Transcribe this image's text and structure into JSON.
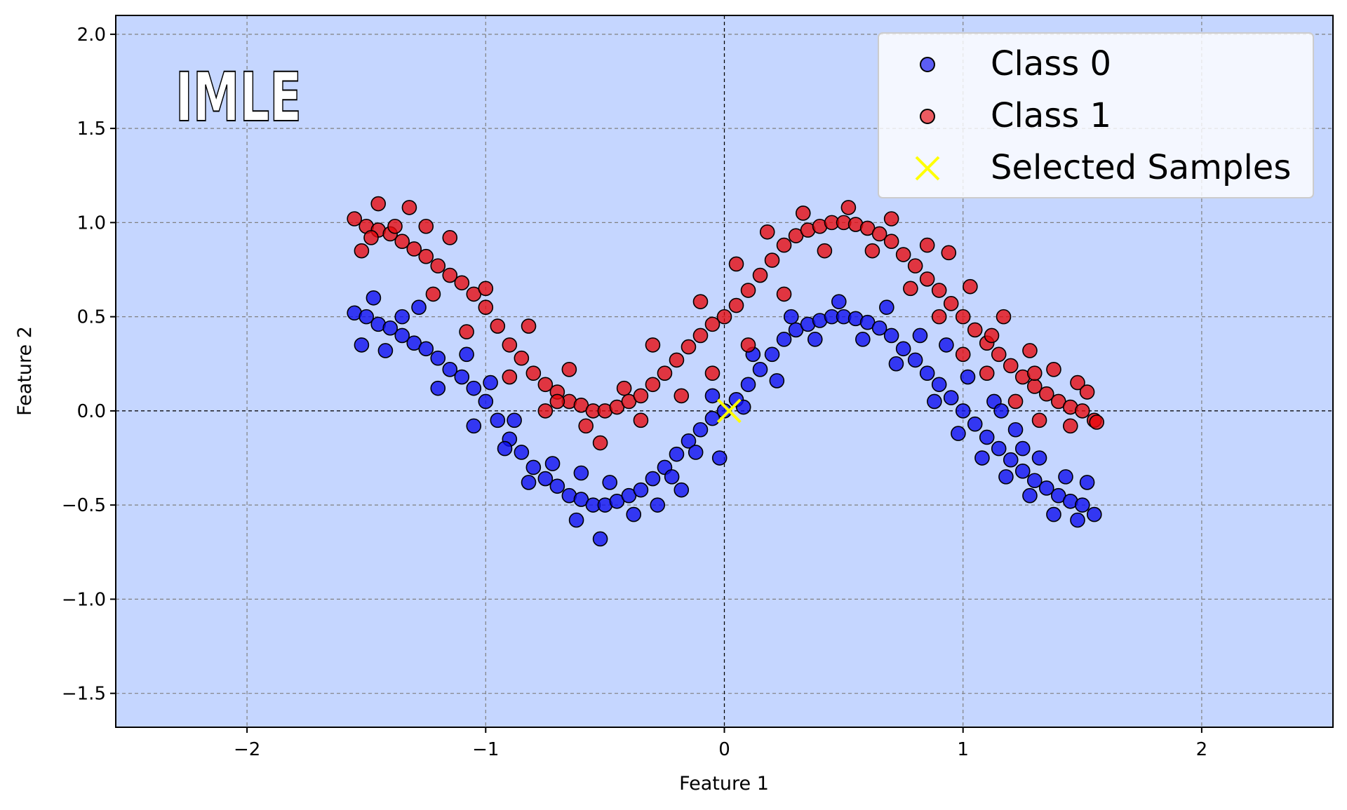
{
  "chart_data": {
    "type": "scatter",
    "title": "",
    "watermark": "IMLE",
    "xlabel": "Feature 1",
    "ylabel": "Feature 2",
    "xlim": [
      -2.55,
      2.55
    ],
    "ylim": [
      -1.68,
      2.1
    ],
    "xticks": [
      -2,
      -1,
      0,
      1,
      2
    ],
    "xtick_labels": [
      "−2",
      "−1",
      "0",
      "1",
      "2"
    ],
    "yticks": [
      -1.5,
      -1.0,
      -0.5,
      0.0,
      0.5,
      1.0,
      1.5,
      2.0
    ],
    "ytick_labels": [
      "−1.5",
      "−1.0",
      "−0.5",
      "0.0",
      "0.5",
      "1.0",
      "1.5",
      "2.0"
    ],
    "grid": true,
    "background_color": "#c5d6ff",
    "legend_position": "top-right",
    "series": [
      {
        "name": "Class 0",
        "color": "#0a0aee",
        "marker": "circle",
        "points": [
          [
            -1.55,
            0.52
          ],
          [
            -1.5,
            0.5
          ],
          [
            -1.45,
            0.46
          ],
          [
            -1.4,
            0.44
          ],
          [
            -1.35,
            0.4
          ],
          [
            -1.3,
            0.36
          ],
          [
            -1.25,
            0.33
          ],
          [
            -1.2,
            0.28
          ],
          [
            -1.15,
            0.22
          ],
          [
            -1.1,
            0.18
          ],
          [
            -1.05,
            0.12
          ],
          [
            -1.0,
            0.05
          ],
          [
            -0.95,
            -0.05
          ],
          [
            -0.9,
            -0.15
          ],
          [
            -0.85,
            -0.22
          ],
          [
            -0.8,
            -0.3
          ],
          [
            -0.75,
            -0.36
          ],
          [
            -0.7,
            -0.4
          ],
          [
            -0.65,
            -0.45
          ],
          [
            -0.6,
            -0.47
          ],
          [
            -0.55,
            -0.5
          ],
          [
            -0.5,
            -0.5
          ],
          [
            -0.45,
            -0.48
          ],
          [
            -0.4,
            -0.45
          ],
          [
            -0.35,
            -0.42
          ],
          [
            -0.3,
            -0.36
          ],
          [
            -0.25,
            -0.3
          ],
          [
            -0.2,
            -0.23
          ],
          [
            -0.15,
            -0.16
          ],
          [
            -0.1,
            -0.1
          ],
          [
            -0.05,
            -0.04
          ],
          [
            0.0,
            0.0
          ],
          [
            0.05,
            0.06
          ],
          [
            0.1,
            0.14
          ],
          [
            0.15,
            0.22
          ],
          [
            0.2,
            0.3
          ],
          [
            0.25,
            0.38
          ],
          [
            0.3,
            0.43
          ],
          [
            0.35,
            0.46
          ],
          [
            0.4,
            0.48
          ],
          [
            0.45,
            0.5
          ],
          [
            0.5,
            0.5
          ],
          [
            0.55,
            0.49
          ],
          [
            0.6,
            0.47
          ],
          [
            0.65,
            0.44
          ],
          [
            0.7,
            0.4
          ],
          [
            0.75,
            0.33
          ],
          [
            0.8,
            0.27
          ],
          [
            0.85,
            0.2
          ],
          [
            0.9,
            0.14
          ],
          [
            0.95,
            0.07
          ],
          [
            1.0,
            0.0
          ],
          [
            1.05,
            -0.07
          ],
          [
            1.1,
            -0.14
          ],
          [
            1.15,
            -0.2
          ],
          [
            1.2,
            -0.26
          ],
          [
            1.25,
            -0.32
          ],
          [
            1.3,
            -0.37
          ],
          [
            1.35,
            -0.41
          ],
          [
            1.4,
            -0.45
          ],
          [
            1.45,
            -0.48
          ],
          [
            1.5,
            -0.5
          ],
          [
            1.55,
            -0.55
          ],
          [
            -1.52,
            0.35
          ],
          [
            -1.47,
            0.6
          ],
          [
            -1.28,
            0.55
          ],
          [
            -1.2,
            0.12
          ],
          [
            -1.08,
            0.3
          ],
          [
            -1.05,
            -0.08
          ],
          [
            -0.98,
            0.15
          ],
          [
            -0.92,
            -0.2
          ],
          [
            -0.88,
            -0.05
          ],
          [
            -0.82,
            -0.38
          ],
          [
            -0.72,
            -0.28
          ],
          [
            -0.62,
            -0.58
          ],
          [
            -0.52,
            -0.68
          ],
          [
            -0.48,
            -0.38
          ],
          [
            -0.38,
            -0.55
          ],
          [
            -0.28,
            -0.5
          ],
          [
            -0.22,
            -0.35
          ],
          [
            -0.12,
            -0.22
          ],
          [
            -0.02,
            -0.25
          ],
          [
            -0.05,
            0.08
          ],
          [
            0.08,
            0.02
          ],
          [
            0.12,
            0.3
          ],
          [
            0.22,
            0.16
          ],
          [
            0.28,
            0.5
          ],
          [
            0.38,
            0.38
          ],
          [
            0.48,
            0.58
          ],
          [
            0.58,
            0.38
          ],
          [
            0.68,
            0.55
          ],
          [
            0.72,
            0.25
          ],
          [
            0.82,
            0.4
          ],
          [
            0.88,
            0.05
          ],
          [
            0.93,
            0.35
          ],
          [
            0.98,
            -0.12
          ],
          [
            1.02,
            0.18
          ],
          [
            1.08,
            -0.25
          ],
          [
            1.13,
            0.05
          ],
          [
            1.18,
            -0.35
          ],
          [
            1.22,
            -0.1
          ],
          [
            1.28,
            -0.45
          ],
          [
            1.32,
            -0.25
          ],
          [
            1.38,
            -0.55
          ],
          [
            1.43,
            -0.35
          ],
          [
            1.48,
            -0.58
          ],
          [
            1.52,
            -0.38
          ],
          [
            1.16,
            0.0
          ],
          [
            1.25,
            -0.2
          ],
          [
            -0.18,
            -0.42
          ],
          [
            -0.6,
            -0.33
          ],
          [
            -1.35,
            0.5
          ],
          [
            -1.42,
            0.32
          ]
        ]
      },
      {
        "name": "Class 1",
        "color": "#e8080c",
        "marker": "circle",
        "points": [
          [
            -1.55,
            1.02
          ],
          [
            -1.5,
            0.98
          ],
          [
            -1.45,
            0.96
          ],
          [
            -1.4,
            0.94
          ],
          [
            -1.35,
            0.9
          ],
          [
            -1.3,
            0.86
          ],
          [
            -1.25,
            0.82
          ],
          [
            -1.2,
            0.77
          ],
          [
            -1.15,
            0.72
          ],
          [
            -1.1,
            0.68
          ],
          [
            -1.05,
            0.62
          ],
          [
            -1.0,
            0.55
          ],
          [
            -0.95,
            0.45
          ],
          [
            -0.9,
            0.35
          ],
          [
            -0.85,
            0.28
          ],
          [
            -0.8,
            0.2
          ],
          [
            -0.75,
            0.14
          ],
          [
            -0.7,
            0.1
          ],
          [
            -0.65,
            0.05
          ],
          [
            -0.6,
            0.03
          ],
          [
            -0.55,
            0.0
          ],
          [
            -0.5,
            0.0
          ],
          [
            -0.45,
            0.02
          ],
          [
            -0.4,
            0.05
          ],
          [
            -0.35,
            0.08
          ],
          [
            -0.3,
            0.14
          ],
          [
            -0.25,
            0.2
          ],
          [
            -0.2,
            0.27
          ],
          [
            -0.15,
            0.34
          ],
          [
            -0.1,
            0.4
          ],
          [
            -0.05,
            0.46
          ],
          [
            0.0,
            0.5
          ],
          [
            0.05,
            0.56
          ],
          [
            0.1,
            0.64
          ],
          [
            0.15,
            0.72
          ],
          [
            0.2,
            0.8
          ],
          [
            0.25,
            0.88
          ],
          [
            0.3,
            0.93
          ],
          [
            0.35,
            0.96
          ],
          [
            0.4,
            0.98
          ],
          [
            0.45,
            1.0
          ],
          [
            0.5,
            1.0
          ],
          [
            0.55,
            0.99
          ],
          [
            0.6,
            0.97
          ],
          [
            0.65,
            0.94
          ],
          [
            0.7,
            0.9
          ],
          [
            0.75,
            0.83
          ],
          [
            0.8,
            0.77
          ],
          [
            0.85,
            0.7
          ],
          [
            0.9,
            0.64
          ],
          [
            0.95,
            0.57
          ],
          [
            1.0,
            0.5
          ],
          [
            1.05,
            0.43
          ],
          [
            1.1,
            0.36
          ],
          [
            1.15,
            0.3
          ],
          [
            1.2,
            0.24
          ],
          [
            1.25,
            0.18
          ],
          [
            1.3,
            0.13
          ],
          [
            1.35,
            0.09
          ],
          [
            1.4,
            0.05
          ],
          [
            1.45,
            0.02
          ],
          [
            1.5,
            0.0
          ],
          [
            1.55,
            -0.05
          ],
          [
            -1.52,
            0.85
          ],
          [
            -1.45,
            1.1
          ],
          [
            -1.32,
            1.08
          ],
          [
            -1.22,
            0.62
          ],
          [
            -1.15,
            0.92
          ],
          [
            -1.08,
            0.42
          ],
          [
            -1.0,
            0.65
          ],
          [
            -0.9,
            0.18
          ],
          [
            -0.82,
            0.45
          ],
          [
            -0.75,
            0.0
          ],
          [
            -0.65,
            0.22
          ],
          [
            -0.58,
            -0.08
          ],
          [
            -0.52,
            -0.17
          ],
          [
            -0.42,
            0.12
          ],
          [
            -0.3,
            0.35
          ],
          [
            -0.35,
            -0.05
          ],
          [
            -0.18,
            0.08
          ],
          [
            -0.1,
            0.58
          ],
          [
            -0.05,
            0.2
          ],
          [
            0.05,
            0.78
          ],
          [
            0.1,
            0.35
          ],
          [
            0.18,
            0.95
          ],
          [
            0.25,
            0.62
          ],
          [
            0.33,
            1.05
          ],
          [
            0.42,
            0.85
          ],
          [
            0.52,
            1.08
          ],
          [
            0.62,
            0.85
          ],
          [
            0.7,
            1.02
          ],
          [
            0.78,
            0.65
          ],
          [
            0.85,
            0.88
          ],
          [
            0.9,
            0.5
          ],
          [
            0.94,
            0.84
          ],
          [
            1.0,
            0.3
          ],
          [
            1.03,
            0.66
          ],
          [
            1.1,
            0.2
          ],
          [
            1.17,
            0.5
          ],
          [
            1.22,
            0.05
          ],
          [
            1.28,
            0.32
          ],
          [
            1.32,
            -0.05
          ],
          [
            1.38,
            0.22
          ],
          [
            1.45,
            -0.08
          ],
          [
            1.48,
            0.15
          ],
          [
            1.52,
            0.1
          ],
          [
            1.56,
            -0.06
          ],
          [
            1.12,
            0.4
          ],
          [
            1.3,
            0.2
          ],
          [
            -0.7,
            0.05
          ],
          [
            -1.38,
            0.98
          ],
          [
            -1.25,
            0.98
          ],
          [
            -1.48,
            0.92
          ]
        ]
      },
      {
        "name": "Selected Samples",
        "color": "#ffff00",
        "marker": "x",
        "points": [
          [
            0.02,
            0.0
          ]
        ]
      }
    ]
  }
}
